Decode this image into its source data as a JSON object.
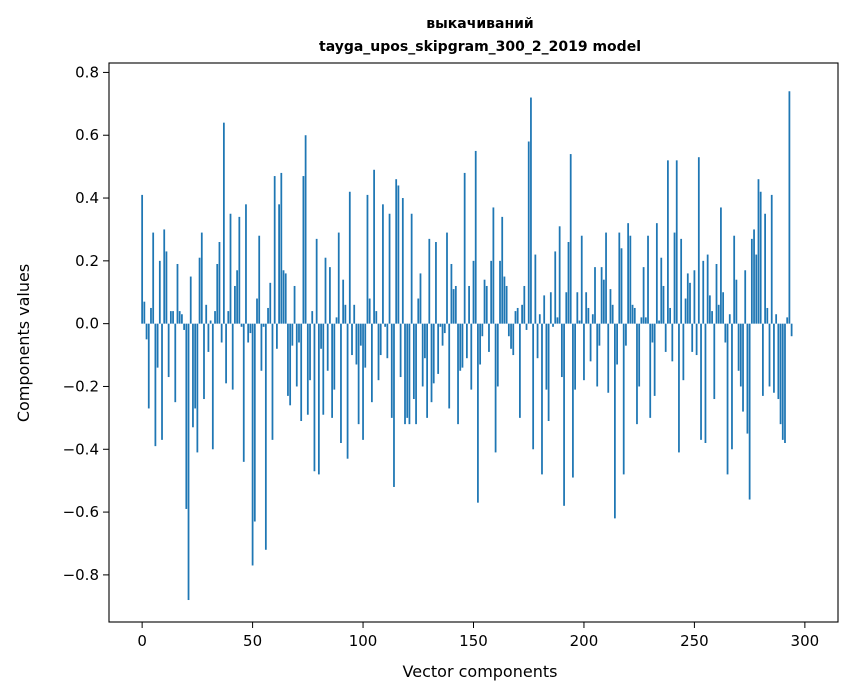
{
  "chart_data": {
    "type": "bar",
    "title_line1": "выкачиваний",
    "title_line2": "tayga_upos_skipgram_300_2_2019 model",
    "xlabel": "Vector components",
    "ylabel": "Components values",
    "xlim": [
      -15,
      315
    ],
    "ylim": [
      -0.95,
      0.83
    ],
    "xticks": [
      0,
      50,
      100,
      150,
      200,
      250,
      300
    ],
    "xtick_labels": [
      "0",
      "50",
      "100",
      "150",
      "200",
      "250",
      "300"
    ],
    "yticks": [
      -0.8,
      -0.6,
      -0.4,
      -0.2,
      0.0,
      0.2,
      0.4,
      0.6,
      0.8
    ],
    "ytick_labels": [
      "−0.8",
      "−0.6",
      "−0.4",
      "−0.2",
      "0.0",
      "0.2",
      "0.4",
      "0.6",
      "0.8"
    ],
    "bar_color": "#1f77b4",
    "values": [
      0.41,
      0.07,
      -0.05,
      -0.27,
      0.05,
      0.29,
      -0.39,
      -0.14,
      0.2,
      -0.37,
      0.3,
      0.23,
      -0.17,
      0.04,
      0.04,
      -0.25,
      0.19,
      0.04,
      0.03,
      -0.02,
      -0.59,
      -0.88,
      0.15,
      -0.33,
      -0.27,
      -0.41,
      0.21,
      0.29,
      -0.24,
      0.06,
      -0.09,
      0.01,
      -0.4,
      0.04,
      0.19,
      0.26,
      -0.06,
      0.64,
      -0.19,
      0.04,
      0.35,
      -0.21,
      0.12,
      0.17,
      0.34,
      -0.01,
      -0.44,
      0.38,
      -0.06,
      -0.03,
      -0.77,
      -0.63,
      0.08,
      0.28,
      -0.15,
      -0.01,
      -0.72,
      0.05,
      0.13,
      -0.37,
      0.47,
      -0.08,
      0.38,
      0.48,
      0.17,
      0.16,
      -0.23,
      -0.26,
      -0.07,
      0.12,
      -0.2,
      -0.06,
      -0.31,
      0.47,
      0.6,
      -0.29,
      -0.18,
      0.04,
      -0.47,
      0.27,
      -0.48,
      -0.08,
      -0.29,
      0.21,
      -0.15,
      0.18,
      -0.3,
      -0.21,
      0.02,
      0.29,
      -0.38,
      0.14,
      0.06,
      -0.43,
      0.42,
      -0.1,
      0.06,
      -0.13,
      -0.32,
      -0.07,
      -0.37,
      -0.14,
      0.41,
      0.08,
      -0.25,
      0.49,
      0.04,
      -0.18,
      -0.1,
      0.38,
      -0.01,
      -0.11,
      0.35,
      -0.3,
      -0.52,
      0.46,
      0.44,
      -0.17,
      0.4,
      -0.32,
      -0.3,
      -0.32,
      0.35,
      -0.24,
      -0.32,
      0.08,
      0.16,
      -0.2,
      -0.11,
      -0.3,
      0.27,
      -0.25,
      -0.19,
      0.26,
      -0.16,
      -0.01,
      -0.07,
      -0.03,
      0.29,
      -0.27,
      0.19,
      0.11,
      0.12,
      -0.32,
      -0.15,
      -0.14,
      0.48,
      -0.11,
      0.12,
      -0.21,
      0.2,
      0.55,
      -0.57,
      -0.13,
      -0.04,
      0.14,
      0.12,
      -0.09,
      0.2,
      0.37,
      -0.41,
      -0.2,
      0.2,
      0.34,
      0.15,
      0.12,
      -0.04,
      -0.08,
      -0.1,
      0.04,
      0.05,
      -0.3,
      0.06,
      0.12,
      -0.02,
      0.58,
      0.72,
      -0.4,
      0.22,
      -0.11,
      0.03,
      -0.48,
      0.09,
      -0.21,
      -0.31,
      0.1,
      -0.01,
      0.23,
      0.02,
      0.31,
      -0.17,
      -0.58,
      0.1,
      0.26,
      0.54,
      -0.49,
      -0.21,
      0.1,
      0.01,
      0.28,
      -0.18,
      0.1,
      0.05,
      -0.12,
      0.03,
      0.18,
      -0.2,
      -0.07,
      0.18,
      0.14,
      0.29,
      -0.22,
      0.11,
      0.06,
      -0.62,
      -0.13,
      0.29,
      0.24,
      -0.48,
      -0.07,
      0.32,
      0.28,
      0.06,
      0.05,
      -0.32,
      -0.2,
      0.02,
      0.18,
      0.02,
      0.28,
      -0.3,
      -0.06,
      -0.23,
      0.32,
      0.01,
      0.21,
      0.12,
      -0.09,
      0.52,
      0.05,
      -0.12,
      0.29,
      0.52,
      -0.41,
      0.27,
      -0.18,
      0.08,
      0.16,
      0.13,
      -0.09,
      0.17,
      -0.1,
      0.53,
      -0.37,
      0.2,
      -0.38,
      0.22,
      0.09,
      0.04,
      -0.24,
      0.19,
      0.06,
      0.37,
      0.1,
      -0.06,
      -0.48,
      0.03,
      -0.4,
      0.28,
      0.14,
      -0.15,
      -0.2,
      -0.28,
      0.17,
      -0.35,
      -0.56,
      0.27,
      0.3,
      0.22,
      0.46,
      0.42,
      -0.23,
      0.35,
      0.05,
      -0.2,
      0.41,
      -0.22,
      0.03,
      -0.24,
      -0.32,
      -0.37,
      -0.38,
      0.02,
      0.74,
      -0.04
    ]
  }
}
